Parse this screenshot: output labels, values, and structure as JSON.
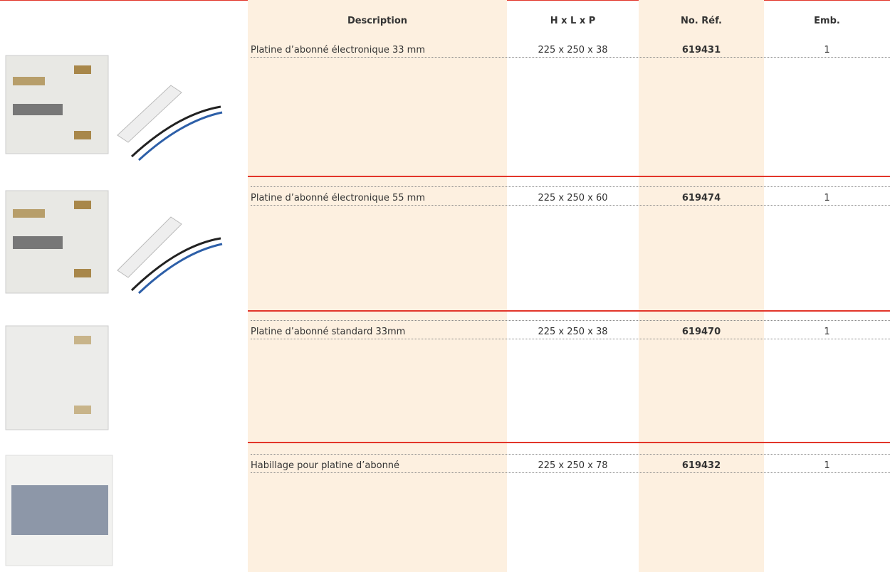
{
  "table": {
    "header": [
      "Description",
      "H x L x P",
      "No. Réf.",
      "Emb."
    ],
    "rows": [
      [
        "Platine d’abonné électronique 33 mm",
        "225 x 250 x 38",
        "619431",
        1
      ],
      [
        "Platine d’abonné électronique 55 mm",
        "225 x 250 x 60",
        "619474",
        1
      ],
      [
        "Platine d’abonné standard 33mm",
        "225 x 250 x 38",
        "619470",
        1
      ],
      [
        "Habillage pour platine d’abonné",
        "225 x 250 x 78",
        "619432",
        1
      ]
    ]
  }
}
